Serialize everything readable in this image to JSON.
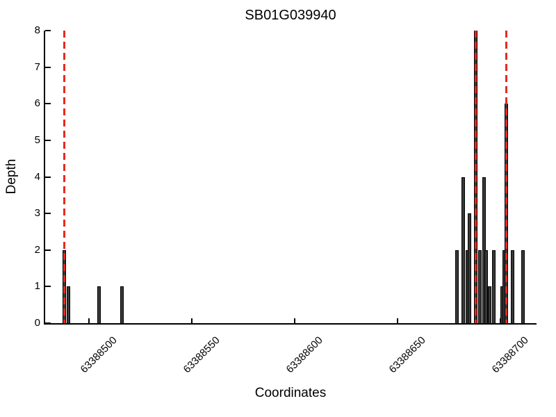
{
  "chart_data": {
    "type": "bar",
    "title": "SB01G039940",
    "xlabel": "Coordinates",
    "ylabel": "Depth",
    "xlim": [
      63388479,
      63388717
    ],
    "ylim": [
      0,
      8
    ],
    "xticks": [
      63388500,
      63388550,
      63388600,
      63388650,
      63388700
    ],
    "yticks": [
      0,
      1,
      2,
      3,
      4,
      5,
      6,
      7,
      8
    ],
    "grid": false,
    "legend": null,
    "bars": [
      {
        "x": 63388488,
        "depth": 2
      },
      {
        "x": 63388490,
        "depth": 1
      },
      {
        "x": 63388505,
        "depth": 1
      },
      {
        "x": 63388516,
        "depth": 1
      },
      {
        "x": 63388679,
        "depth": 2
      },
      {
        "x": 63388682,
        "depth": 4
      },
      {
        "x": 63388684,
        "depth": 2
      },
      {
        "x": 63388685,
        "depth": 3
      },
      {
        "x": 63388688,
        "depth": 8
      },
      {
        "x": 63388690,
        "depth": 2
      },
      {
        "x": 63388692,
        "depth": 4
      },
      {
        "x": 63388693,
        "depth": 2
      },
      {
        "x": 63388695,
        "depth": 1
      },
      {
        "x": 63388697,
        "depth": 2
      },
      {
        "x": 63388701,
        "depth": 1
      },
      {
        "x": 63388702,
        "depth": 2
      },
      {
        "x": 63388703,
        "depth": 6
      },
      {
        "x": 63388706,
        "depth": 2
      },
      {
        "x": 63388711,
        "depth": 2
      }
    ],
    "vlines": {
      "x": [
        63388488,
        63388688,
        63388703
      ],
      "style": "dashed",
      "y_span": [
        0,
        8
      ]
    },
    "colors": {
      "bar_fill": "#383838",
      "bar_edge": "#000000",
      "vline_red": "#e8291e",
      "axis": "#000000"
    }
  }
}
